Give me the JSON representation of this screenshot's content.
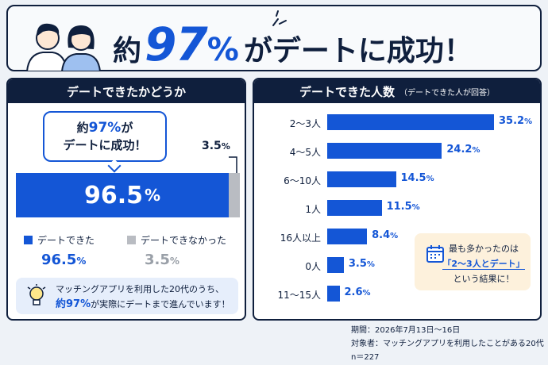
{
  "header": {
    "headline_pre": "約",
    "headline_num": "97",
    "headline_pct": "%",
    "headline_post": "がデートに成功！"
  },
  "left_panel": {
    "title": "デートできたかどうか",
    "bubble_line1_pre": "約",
    "bubble_line1_num": "97%",
    "bubble_line1_post": "が",
    "bubble_line2": "デートに成功！",
    "minor_value": "3.5",
    "minor_unit": "%",
    "major_value": "96.5",
    "major_unit": "%",
    "legend": [
      {
        "label": "デートできた",
        "value": "96.5",
        "unit": "%",
        "color": "#1456d6"
      },
      {
        "label": "デートできなかった",
        "value": "3.5",
        "unit": "%",
        "color": "#b9bcc2"
      }
    ],
    "note_line1": "マッチングアプリを利用した20代のうち、",
    "note_line2_hi": "約97%",
    "note_line2_rest": "が実際にデートまで進んでいます！"
  },
  "right_panel": {
    "title": "デートできた人数",
    "subtitle": "（デートできた人が回答）",
    "callout_line1": "最も多かったのは",
    "callout_line2": "「2〜3人とデート」",
    "callout_line3": "という結果に！"
  },
  "chart_data": [
    {
      "type": "bar",
      "orientation": "horizontal-stacked",
      "categories": [
        "デートできた",
        "デートできなかった"
      ],
      "values": [
        96.5,
        3.5
      ],
      "unit": "%",
      "colors": [
        "#1456d6",
        "#b9bcc2"
      ]
    },
    {
      "type": "bar",
      "orientation": "horizontal",
      "title": "デートできた人数",
      "subtitle": "（デートできた人が回答）",
      "categories": [
        "2〜3人",
        "4〜5人",
        "6〜10人",
        "1人",
        "16人以上",
        "0人",
        "11〜15人"
      ],
      "values": [
        35.2,
        24.2,
        14.5,
        11.5,
        8.4,
        3.5,
        2.6
      ],
      "unit": "%",
      "color": "#1456d6"
    }
  ],
  "footer": {
    "period": "期間：2026年7月13日〜16日",
    "target": "対象者：マッチングアプリを利用したことがある20代",
    "n": "n＝227"
  },
  "colors": {
    "navy": "#0f1f3d",
    "blue": "#1456d6",
    "gray": "#b9bcc2",
    "callout_bg": "#fdf1dc"
  },
  "icons": [
    "couple-illustration",
    "sparkle-icon",
    "lightbulb-icon",
    "calendar-icon"
  ]
}
